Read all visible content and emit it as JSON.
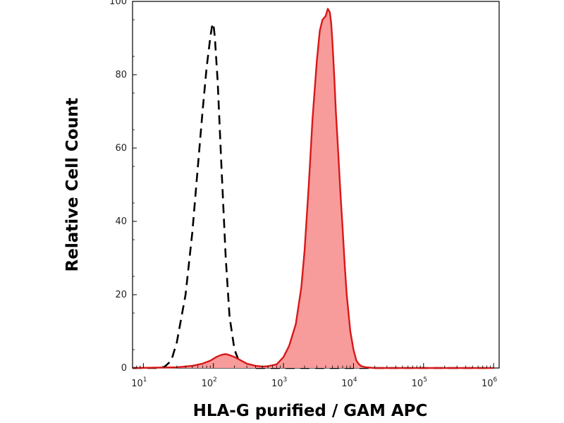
{
  "chart_data": {
    "type": "area",
    "xscale": "log",
    "xlabel": "HLA-G purified / GAM APC",
    "ylabel": "Relative Cell Count",
    "xlim": [
      7,
      1200000
    ],
    "ylim": [
      0,
      100
    ],
    "yticks": [
      "0",
      "20",
      "40",
      "60",
      "80",
      "100"
    ],
    "xticks": [
      {
        "value": 10,
        "base": "10",
        "exp": "1"
      },
      {
        "value": 100,
        "base": "10",
        "exp": "2"
      },
      {
        "value": 1000,
        "base": "10",
        "exp": "3"
      },
      {
        "value": 10000,
        "base": "10",
        "exp": "4"
      },
      {
        "value": 100000,
        "base": "10",
        "exp": "5"
      },
      {
        "value": 1000000,
        "base": "10",
        "exp": "6"
      }
    ],
    "grid": false,
    "colors": {
      "stained_fill": "#f89b9b",
      "stained_line": "#d81818",
      "control_line": "#000000"
    },
    "series": [
      {
        "style": "dashed-line",
        "x": [
          7,
          15,
          20,
          25,
          30,
          40,
          50,
          60,
          70,
          80,
          90,
          95,
          100,
          105,
          115,
          130,
          150,
          170,
          200,
          230,
          260,
          300,
          350,
          400,
          500,
          1000000
        ],
        "y": [
          0,
          0,
          0.3,
          2,
          7,
          20,
          37,
          55,
          70,
          82,
          90,
          93,
          94,
          90,
          78,
          55,
          30,
          14,
          5,
          2,
          0.8,
          0.3,
          0,
          0,
          0,
          0
        ]
      },
      {
        "style": "filled-area",
        "x": [
          7,
          30,
          50,
          70,
          90,
          110,
          130,
          150,
          170,
          200,
          250,
          300,
          400,
          500,
          600,
          800,
          1000,
          1200,
          1500,
          1800,
          2000,
          2300,
          2600,
          3000,
          3300,
          3600,
          4000,
          4300,
          4600,
          4800,
          5000,
          5300,
          5600,
          6000,
          6500,
          7000,
          7500,
          8000,
          9000,
          10000,
          11000,
          12000,
          13000,
          15000,
          20000,
          100000,
          1000000
        ],
        "y": [
          0,
          0.2,
          0.6,
          1.2,
          2,
          3,
          3.6,
          3.8,
          3.5,
          3,
          2,
          1.2,
          0.6,
          0.4,
          0.5,
          1,
          3,
          6,
          12,
          22,
          32,
          50,
          68,
          84,
          92,
          95,
          96,
          98,
          97,
          94,
          89,
          80,
          70,
          60,
          48,
          38,
          28,
          20,
          10,
          5,
          2,
          1,
          0.5,
          0.2,
          0,
          0,
          0
        ]
      }
    ]
  }
}
